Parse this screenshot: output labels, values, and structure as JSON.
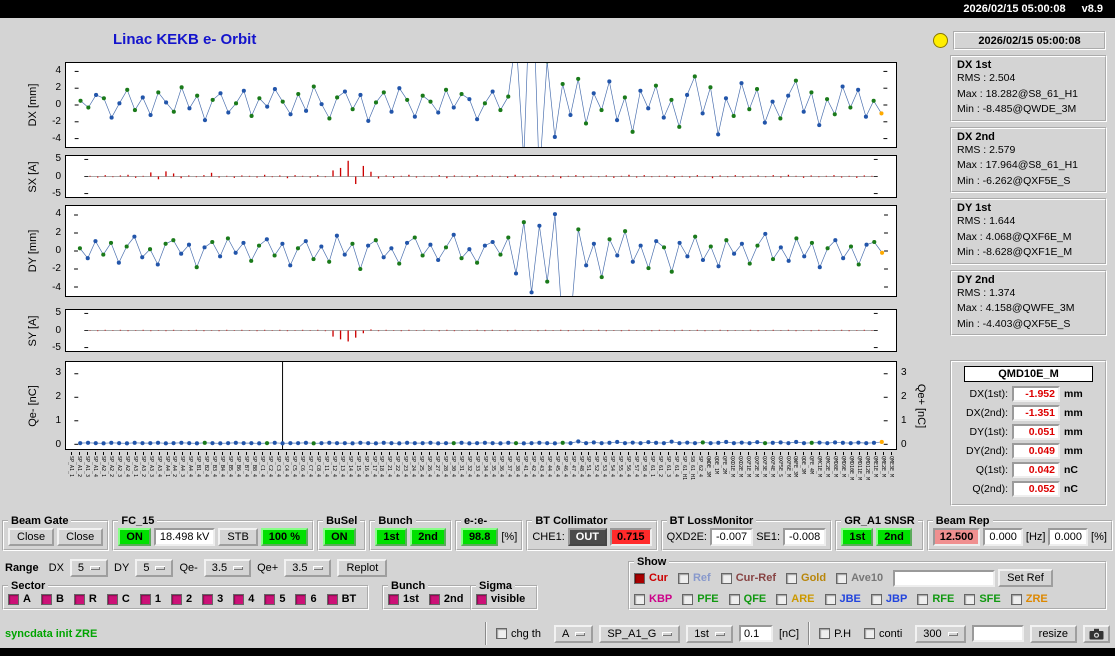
{
  "titlebar": {
    "datetime": "2026/02/15 05:00:08",
    "version": "v8.9"
  },
  "header": {
    "title": "Linac KEKB e- Orbit",
    "timestamp": "2026/02/15 05:00:08"
  },
  "colors": {
    "background": "#d4d4d4",
    "title_blue": "#1414cc",
    "lamp_yellow": "#ffee00",
    "led_green": "#00e000",
    "alarm_red": "#ff2a2a",
    "rep_pink": "#f09090",
    "value_red": "#dd0000",
    "status_green": "#00a400",
    "check_magenta": "#cc1177",
    "point_blue": "#2255aa",
    "point_green": "#1a7a1a",
    "line_blue": "#4a6fae",
    "bar_red": "#cc0000",
    "last_point_orange": "#ffaa00"
  },
  "stats": [
    {
      "name": "DX 1st",
      "lines": [
        "RMS : 2.504",
        "Max : 18.282@S8_61_H1",
        "Min : -8.485@QWDE_3M"
      ]
    },
    {
      "name": "DX 2nd",
      "lines": [
        "RMS : 2.579",
        "Max : 17.964@S8_61_H1",
        "Min : -6.262@QXF5E_S"
      ]
    },
    {
      "name": "DY 1st",
      "lines": [
        "RMS : 1.644",
        "Max : 4.068@QXF6E_M",
        "Min : -8.628@QXF1E_M"
      ]
    },
    {
      "name": "DY 2nd",
      "lines": [
        "RMS : 1.374",
        "Max : 4.158@QWFE_3M",
        "Min : -4.403@QXF5E_S"
      ]
    }
  ],
  "monitor": {
    "title": "QMD10E_M",
    "rows": [
      {
        "label": "DX(1st):",
        "value": "-1.952",
        "unit": "mm"
      },
      {
        "label": "DX(2nd):",
        "value": "-1.351",
        "unit": "mm"
      },
      {
        "label": "DY(1st):",
        "value": "0.051",
        "unit": "mm"
      },
      {
        "label": "DY(2nd):",
        "value": "0.049",
        "unit": "mm"
      },
      {
        "label": "Q(1st):",
        "value": "0.042",
        "unit": "nC"
      },
      {
        "label": "Q(2nd):",
        "value": "0.052",
        "unit": "nC"
      }
    ]
  },
  "panels": [
    {
      "title": "Beam Gate",
      "items": [
        {
          "type": "button",
          "label": "Close"
        },
        {
          "type": "button",
          "label": "Close"
        }
      ]
    },
    {
      "title": "FC_15",
      "items": [
        {
          "type": "led",
          "label": "ON"
        },
        {
          "type": "field",
          "label": "18.498 kV"
        },
        {
          "type": "button",
          "label": "STB"
        },
        {
          "type": "led",
          "label": "100 %"
        }
      ]
    },
    {
      "title": "BuSel",
      "items": [
        {
          "type": "led",
          "label": "ON"
        }
      ]
    },
    {
      "title": "Bunch",
      "items": [
        {
          "type": "led",
          "label": "1st"
        },
        {
          "type": "led",
          "label": "2nd"
        }
      ]
    },
    {
      "title": "e-:e-",
      "items": [
        {
          "type": "led",
          "label": "98.8"
        },
        {
          "type": "text",
          "label": "[%]"
        }
      ]
    },
    {
      "title": "BT Collimator",
      "items": [
        {
          "type": "text",
          "label": "CHE1:"
        },
        {
          "type": "dark",
          "label": "OUT"
        },
        {
          "type": "alarm",
          "label": "0.715"
        }
      ]
    },
    {
      "title": "BT LossMonitor",
      "items": [
        {
          "type": "text",
          "label": "QXD2E:"
        },
        {
          "type": "field",
          "label": "-0.007"
        },
        {
          "type": "text",
          "label": "SE1:"
        },
        {
          "type": "field",
          "label": "-0.008"
        }
      ]
    },
    {
      "title": "GR_A1 SNSR",
      "items": [
        {
          "type": "led",
          "label": "1st"
        },
        {
          "type": "led",
          "label": "2nd"
        }
      ]
    },
    {
      "title": "Beam Rep",
      "items": [
        {
          "type": "pink",
          "label": "12.500"
        },
        {
          "type": "field",
          "label": "0.000"
        },
        {
          "type": "text",
          "label": "[Hz]"
        },
        {
          "type": "field",
          "label": "0.000"
        },
        {
          "type": "text",
          "label": "[%]"
        }
      ]
    }
  ],
  "range_row": {
    "label": "Range",
    "items": [
      {
        "label": "DX",
        "value": "5"
      },
      {
        "label": "DY",
        "value": "5"
      },
      {
        "label": "Qe-",
        "value": "3.5"
      },
      {
        "label": "Qe+",
        "value": "3.5"
      }
    ],
    "replot": "Replot"
  },
  "sector": {
    "title": "Sector",
    "options": [
      "A",
      "B",
      "R",
      "C",
      "1",
      "2",
      "3",
      "4",
      "5",
      "6",
      "BT"
    ]
  },
  "bunch_sel": {
    "title": "Bunch",
    "options": [
      "1st",
      "2nd"
    ]
  },
  "sigma": {
    "title": "Sigma",
    "options": [
      "visible"
    ]
  },
  "show": {
    "title": "Show",
    "row1": [
      {
        "label": "Cur",
        "color": "#cc0000",
        "checked": true,
        "box": "#aa0000"
      },
      {
        "label": "Ref",
        "color": "#8899cc",
        "checked": false
      },
      {
        "label": "Cur-Ref",
        "color": "#884444",
        "checked": false
      },
      {
        "label": "Gold",
        "color": "#b8860b",
        "checked": false
      },
      {
        "label": "Ave10",
        "color": "#777777",
        "checked": false
      }
    ],
    "ref_input_value": "",
    "set_ref": "Set Ref",
    "row2": [
      {
        "label": "KBP",
        "color": "#cc0088"
      },
      {
        "label": "PFE",
        "color": "#119911"
      },
      {
        "label": "QFE",
        "color": "#119911"
      },
      {
        "label": "ARE",
        "color": "#cc9900"
      },
      {
        "label": "JBE",
        "color": "#2244dd"
      },
      {
        "label": "JBP",
        "color": "#2244dd"
      },
      {
        "label": "RFE",
        "color": "#119911"
      },
      {
        "label": "SFE",
        "color": "#119911"
      },
      {
        "label": "ZRE",
        "color": "#dd8800"
      }
    ]
  },
  "bottom": {
    "status": "syncdata init ZRE",
    "chg_th": "chg th",
    "dd_a": "A",
    "dd_sp": "SP_A1_G",
    "dd_bunch": "1st",
    "threshold": "0.1",
    "nc_unit": "[nC]",
    "ph": "P.H",
    "conti": "conti",
    "dd_count": "300",
    "resize": "resize"
  },
  "chart_data": {
    "type": "multi-panel-orbit",
    "categories": [
      "SP_A1_1",
      "SP_A1_2",
      "SP_A1_3",
      "SP_A1_4",
      "SP_A2_1",
      "SP_A2_2",
      "SP_A2_3",
      "SP_A2_4",
      "SP_A3_1",
      "SP_A3_2",
      "SP_A3_3",
      "SP_A3_4",
      "SP_A4_1",
      "SP_A4_2",
      "SP_A4_3",
      "SP_A4_4",
      "SP_B1_4",
      "SP_B2_4",
      "SP_B3_4",
      "SP_B4_4",
      "SP_B5_4",
      "SP_B6_4",
      "SP_B7_4",
      "SP_B8_4",
      "SP_C1_4",
      "SP_C2_4",
      "SP_C3_4",
      "SP_C4_4",
      "SP_C5_4",
      "SP_C6_4",
      "SP_C7_4",
      "SP_C8_4",
      "SP_11_4",
      "SP_12_4",
      "SP_13_4",
      "SP_14_4",
      "SP_15_4",
      "SP_16_4",
      "SP_17_4",
      "SP_18_4",
      "SP_21_4",
      "SP_22_4",
      "SP_23_4",
      "SP_24_4",
      "SP_25_4",
      "SP_26_4",
      "SP_27_4",
      "SP_28_4",
      "SP_30_4",
      "SP_31_4",
      "SP_32_4",
      "SP_33_4",
      "SP_34_4",
      "SP_35_4",
      "SP_36_4",
      "SP_37_4",
      "SP_38_4",
      "SP_41_4",
      "SP_42_4",
      "SP_43_4",
      "SP_44_4",
      "SP_45_4",
      "SP_46_4",
      "SP_47_4",
      "SP_48_4",
      "SP_51_4",
      "SP_52_4",
      "SP_53_4",
      "SP_54_4",
      "SP_55_4",
      "SP_56_4",
      "SP_57_4",
      "SP_58_4",
      "SP_61_1",
      "SP_61_2",
      "SP_61_3",
      "SP_61_4",
      "SP_61_H1",
      "S8_61_H1",
      "SP_62_4",
      "QWDE_3M",
      "QDE_1M",
      "QFE_2M",
      "QXD1E_M",
      "QXD2E_M",
      "QXF1E_M",
      "QXF2E_M",
      "QXF3E_M",
      "QXF4E_M",
      "QXF5E_S",
      "QXF6E_M",
      "QWFE_3M",
      "QDE_3M",
      "QFE_4M",
      "QMC1E_M",
      "QMC2E_M",
      "QMD8E_M",
      "QMD9E_M",
      "QMD10E_M",
      "QMD11E_M",
      "QMD12E_M",
      "QME1E_M",
      "QME2E_M",
      "QME3E_M"
    ],
    "plots": [
      {
        "type": "scatter-line",
        "name": "DX",
        "ylabel": "DX [mm]",
        "ylim": [
          -5,
          5
        ],
        "yticks": [
          4,
          2,
          0,
          -2,
          -4
        ],
        "point_colors": "ggbgbbggbbgbggbgbgbbgbggbbgbgbgb",
        "values": [
          0.5,
          -0.3,
          1.2,
          0.8,
          -1.5,
          0.2,
          1.8,
          -0.6,
          0.9,
          -1.2,
          1.5,
          0.3,
          -0.8,
          2.1,
          -0.4,
          1.1,
          -1.8,
          0.6,
          1.4,
          -0.9,
          0.2,
          1.7,
          -1.3,
          0.8,
          -0.2,
          1.9,
          0.4,
          -1.1,
          1.3,
          -0.7,
          2.2,
          0.1,
          -1.6,
          0.9,
          1.6,
          -0.5,
          1.2,
          -1.9,
          0.3,
          1.5,
          -0.8,
          2.0,
          0.6,
          -1.4,
          1.1,
          0.4,
          -0.9,
          1.8,
          -0.3,
          1.3,
          0.7,
          -1.7,
          0.2,
          1.6,
          -0.6,
          1.0,
          8.0,
          -6.5,
          18.3,
          -8.5,
          5.2,
          -3.8,
          2.5,
          -1.2,
          3.1,
          -2.2,
          1.4,
          -0.6,
          2.8,
          -1.8,
          0.9,
          -3.2,
          1.7,
          -0.4,
          2.3,
          -1.5,
          0.6,
          -2.6,
          1.2,
          3.4,
          -1.0,
          2.1,
          -3.5,
          0.8,
          -1.3,
          2.6,
          -0.5,
          1.9,
          -2.1,
          0.4,
          -1.6,
          1.1,
          2.9,
          -0.8,
          1.5,
          -2.4,
          0.7,
          -1.1,
          2.2,
          -0.3,
          1.8,
          -1.4,
          0.5,
          -1.0
        ]
      },
      {
        "type": "bar",
        "name": "SX",
        "ylabel": "SX [A]",
        "ylim": [
          -6,
          6
        ],
        "yticks": [
          5,
          0,
          -5
        ],
        "values": [
          0.2,
          -0.3,
          0.4,
          -0.2,
          0.3,
          0.5,
          -0.4,
          0.2,
          1.2,
          -0.8,
          1.5,
          0.9,
          -0.5,
          0.3,
          -0.2,
          0.4,
          1.1,
          -0.3,
          0.2,
          -0.4,
          0.3,
          0.2,
          -0.3,
          0.5,
          -0.2,
          0.3,
          -0.5,
          0.4,
          0.2,
          -0.3,
          0.4,
          -0.2,
          1.8,
          2.5,
          4.6,
          -2.2,
          3.1,
          1.4,
          -0.6,
          0.3,
          -0.4,
          0.2,
          0.5,
          -0.3,
          0.2,
          -0.2,
          0.4,
          -0.5,
          0.3,
          0.2,
          -0.3,
          0.4,
          -0.2,
          0.3,
          0.2,
          -0.4,
          0.5,
          -0.3,
          0.2,
          0.4,
          -0.2,
          0.3,
          -0.5,
          0.2,
          0.4,
          -0.3,
          0.2,
          -0.2,
          0.3,
          -0.4,
          0.2,
          0.5,
          -0.3,
          0.4,
          -0.2,
          0.2,
          0.3,
          -0.4,
          0.2,
          -0.3,
          0.4,
          0.2,
          -0.5,
          0.3,
          -0.2,
          0.4,
          -0.3,
          0.2,
          0.3,
          -0.2,
          0.4,
          -0.3,
          0.5,
          0.2,
          -0.4,
          0.3,
          -0.2,
          0.2,
          0.4,
          -0.3,
          0.2,
          -0.4,
          0.3,
          0.2
        ]
      },
      {
        "type": "scatter-line",
        "name": "DY",
        "ylabel": "DY [mm]",
        "ylim": [
          -5,
          5
        ],
        "yticks": [
          4,
          2,
          0,
          -2,
          -4
        ],
        "point_colors": "gbbggbgbbgbggbbgbgbgbbggbgbbgbgb",
        "values": [
          0.3,
          -0.8,
          1.1,
          -0.4,
          0.9,
          -1.3,
          0.5,
          1.6,
          -0.7,
          0.2,
          -1.5,
          0.8,
          1.2,
          -0.3,
          0.7,
          -1.8,
          0.4,
          1.0,
          -0.6,
          1.4,
          -0.2,
          0.9,
          -1.1,
          0.6,
          1.3,
          -0.5,
          0.8,
          -1.6,
          0.3,
          1.1,
          -0.9,
          0.5,
          -1.2,
          1.7,
          -0.4,
          0.8,
          -2.0,
          0.6,
          1.2,
          -0.7,
          0.3,
          -1.4,
          0.9,
          1.5,
          -0.5,
          0.7,
          -1.0,
          0.4,
          1.8,
          -0.8,
          0.2,
          -1.3,
          0.6,
          1.0,
          -0.4,
          1.5,
          -2.5,
          3.2,
          -4.6,
          2.8,
          -3.4,
          4.1,
          -8.6,
          -7.8,
          2.4,
          -1.6,
          0.8,
          -2.9,
          1.3,
          -0.5,
          2.2,
          -1.2,
          0.6,
          -1.9,
          1.1,
          0.4,
          -2.3,
          0.9,
          -0.6,
          1.6,
          -1.0,
          0.5,
          -1.7,
          1.2,
          -0.3,
          0.8,
          -1.4,
          0.6,
          1.9,
          -0.9,
          0.4,
          -1.1,
          1.4,
          -0.6,
          0.9,
          -1.8,
          0.3,
          1.2,
          -0.8,
          0.5,
          -1.5,
          0.7,
          1.0,
          -0.2
        ]
      },
      {
        "type": "bar",
        "name": "SY",
        "ylabel": "SY [A]",
        "ylim": [
          -6,
          6
        ],
        "yticks": [
          5,
          0,
          -5
        ],
        "values": [
          0.1,
          -0.2,
          0.2,
          -0.1,
          0.2,
          -0.2,
          0.1,
          0.2,
          -0.2,
          0.1,
          -0.2,
          0.2,
          0.1,
          -0.1,
          0.2,
          -0.2,
          0.1,
          -0.2,
          0.2,
          -0.1,
          0.2,
          0.1,
          -0.2,
          0.2,
          -0.1,
          0.2,
          -0.2,
          0.1,
          0.2,
          -0.1,
          0.2,
          -0.2,
          -1.8,
          -2.6,
          -3.2,
          -2.1,
          -0.8,
          0.3,
          -0.2,
          0.2,
          0.1,
          -0.2,
          0.2,
          -0.1,
          0.2,
          0.1,
          -0.2,
          0.2,
          -0.2,
          0.1,
          -0.1,
          0.2,
          -0.2,
          0.2,
          0.1,
          -0.2,
          0.2,
          -0.1,
          0.1,
          -0.2,
          0.2,
          -0.1,
          0.2,
          -0.2,
          0.1,
          0.2,
          -0.1,
          0.2,
          -0.2,
          0.1,
          -0.2,
          0.2,
          -0.1,
          0.1,
          -0.2,
          0.2,
          0.1,
          -0.2,
          0.2,
          -0.1,
          0.2,
          -0.2,
          0.1,
          0.2,
          -0.2,
          0.1,
          -0.1,
          0.2,
          -0.2,
          0.1,
          0.2,
          -0.1,
          0.2,
          -0.2,
          0.1,
          -0.2,
          0.2,
          0.1,
          -0.1,
          0.2,
          -0.2,
          0.1,
          0.2,
          -0.1
        ]
      },
      {
        "type": "scatter-line",
        "name": "Q",
        "ylabel": "Qe- [nC]",
        "ylabel_right": "Qe+ [nC]",
        "ylim": [
          -0.2,
          3.5
        ],
        "yticks": [
          3,
          2,
          1,
          0
        ],
        "spike_index": 26,
        "point_colors": "bbbbbbbbbbbbbbbbgbbbbbbbgbbbbbgb",
        "values": [
          0.05,
          0.06,
          0.05,
          0.04,
          0.06,
          0.05,
          0.04,
          0.06,
          0.05,
          0.05,
          0.06,
          0.04,
          0.05,
          0.06,
          0.05,
          0.04,
          0.06,
          0.05,
          0.04,
          0.05,
          0.06,
          0.05,
          0.05,
          0.04,
          0.05,
          0.06,
          0.04,
          0.05,
          0.05,
          0.06,
          0.04,
          0.05,
          0.06,
          0.05,
          0.05,
          0.04,
          0.06,
          0.05,
          0.04,
          0.06,
          0.05,
          0.04,
          0.06,
          0.05,
          0.05,
          0.06,
          0.04,
          0.05,
          0.05,
          0.06,
          0.04,
          0.05,
          0.06,
          0.05,
          0.04,
          0.06,
          0.05,
          0.04,
          0.05,
          0.06,
          0.05,
          0.04,
          0.06,
          0.05,
          0.12,
          0.05,
          0.08,
          0.05,
          0.06,
          0.1,
          0.05,
          0.07,
          0.05,
          0.09,
          0.06,
          0.05,
          0.11,
          0.05,
          0.07,
          0.05,
          0.08,
          0.05,
          0.06,
          0.1,
          0.05,
          0.07,
          0.05,
          0.09,
          0.05,
          0.06,
          0.08,
          0.05,
          0.1,
          0.05,
          0.06,
          0.07,
          0.05,
          0.08,
          0.06,
          0.05,
          0.07,
          0.05,
          0.06,
          0.1
        ]
      }
    ]
  }
}
